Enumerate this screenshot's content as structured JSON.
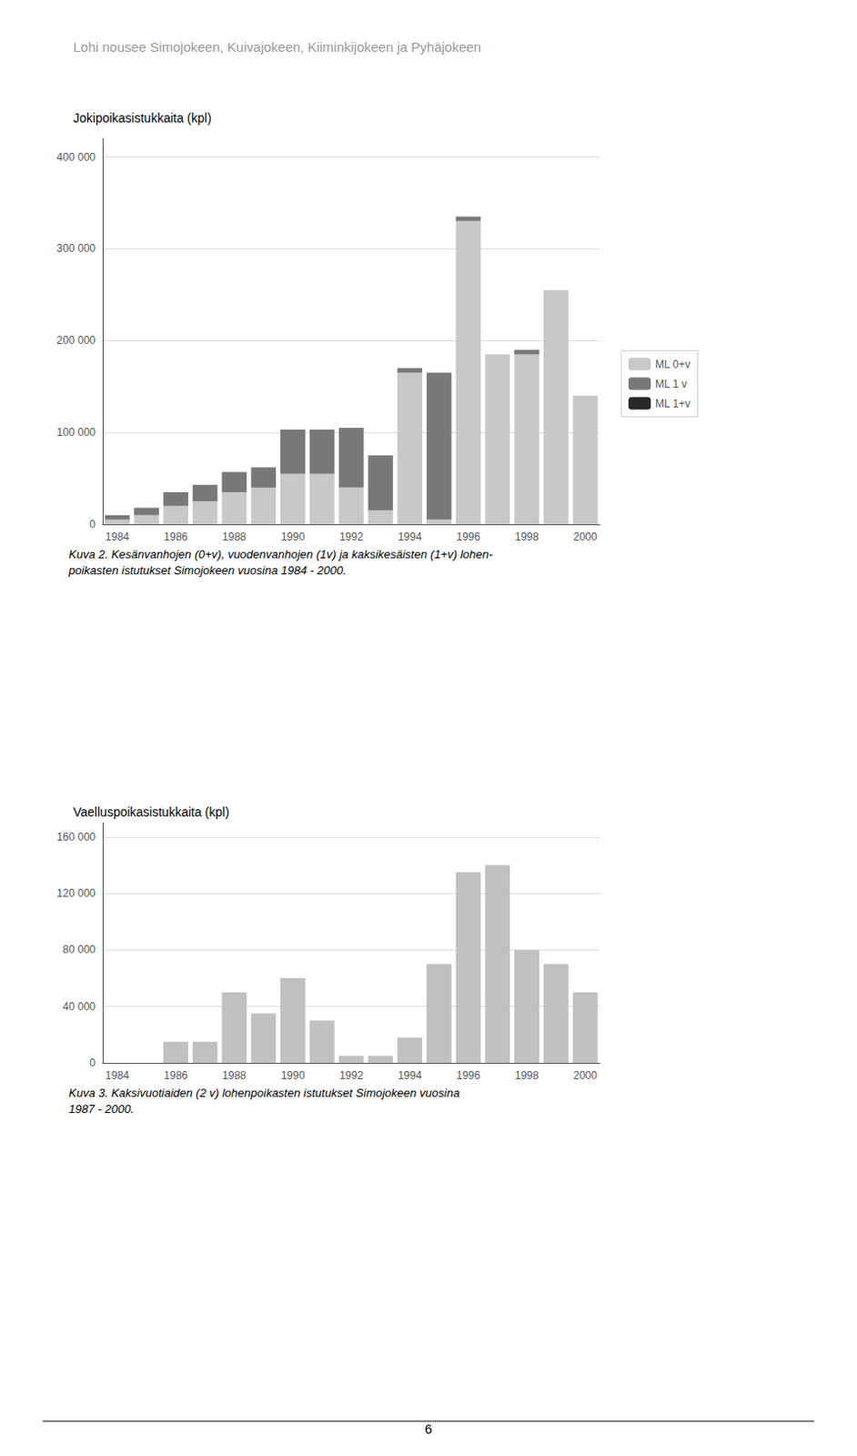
{
  "title": "Lohi nousee Simojokeen, Kuivajokeen, Kiiminkijokeen ja Pyhäjokeen",
  "page_number": "6",
  "chart_data": [
    {
      "type": "bar",
      "ylabel": "Jokipoikasistukkaita (kpl)",
      "caption": "Kuva 2. Kesänvanhojen (0+v), vuodenvanhojen (1v) ja kaksikesäisten (1+v) lohen-\npoikasten istutukset Simojokeen vuosina 1984 - 2000.",
      "categories": [
        1984,
        null,
        1986,
        null,
        1988,
        null,
        1990,
        null,
        1992,
        null,
        1994,
        null,
        1996,
        null,
        1998,
        null,
        2000
      ],
      "series": [
        {
          "name": "ML 0+v",
          "color": "#c8c8c8",
          "values": [
            5000,
            10000,
            20000,
            25000,
            35000,
            40000,
            55000,
            55000,
            40000,
            15000,
            165000,
            5000,
            330000,
            185000,
            185000,
            255000,
            140000
          ]
        },
        {
          "name": "ML 1 v",
          "color": "#787878",
          "values": [
            5000,
            8000,
            15000,
            18000,
            22000,
            22000,
            48000,
            48000,
            65000,
            60000,
            5000,
            160000,
            5000,
            0,
            5000,
            0,
            0
          ]
        },
        {
          "name": "ML 1+v",
          "color": "#282828",
          "values": [
            0,
            0,
            0,
            0,
            0,
            0,
            0,
            0,
            0,
            0,
            0,
            0,
            0,
            0,
            0,
            0,
            0
          ]
        }
      ],
      "stacked": true,
      "ylim": [
        0,
        420000
      ],
      "yticks": [
        0,
        {
          "value": 100000,
          "label": "100 000"
        },
        {
          "value": 200000,
          "label": "200 000"
        },
        {
          "value": 300000,
          "label": "300 000"
        },
        {
          "value": 400000,
          "label": "400 000"
        }
      ],
      "grid": true,
      "legend": "right"
    },
    {
      "type": "bar",
      "ylabel": "Vaelluspoikasistukkaita (kpl)",
      "caption": "Kuva 3. Kaksivuotiaiden (2 v) lohenpoikasten istutukset Simojokeen vuosina\n1987 - 2000.",
      "categories": [
        1984,
        null,
        1986,
        null,
        1988,
        null,
        1990,
        null,
        1992,
        null,
        1994,
        null,
        1996,
        null,
        1998,
        null,
        2000
      ],
      "values": [
        0,
        0,
        15000,
        15000,
        50000,
        35000,
        60000,
        30000,
        5000,
        5000,
        18000,
        70000,
        135000,
        140000,
        80000,
        70000,
        50000
      ],
      "color": "#c0c0c0",
      "ylim": [
        0,
        170000
      ],
      "yticks": [
        0,
        {
          "value": 40000,
          "label": "40 000"
        },
        {
          "value": 80000,
          "label": "80 000"
        },
        {
          "value": 120000,
          "label": "120 000"
        },
        {
          "value": 160000,
          "label": "160 000"
        }
      ],
      "grid": true
    }
  ]
}
